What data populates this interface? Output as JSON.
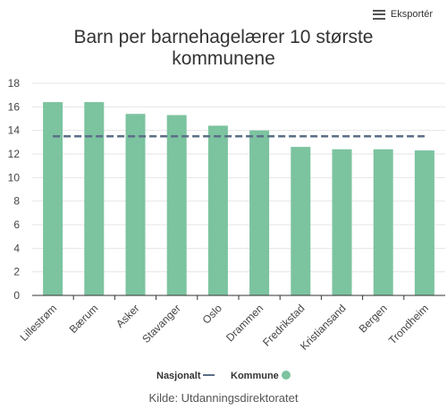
{
  "export_button": {
    "label": "Eksportér",
    "icon": "menu-icon"
  },
  "colors": {
    "bar": "#7cc3a0",
    "national_line": "#5b6f86",
    "grid": "#e6e6e6",
    "axis": "#333333"
  },
  "source": "Kilde: Utdanningsdirektoratet",
  "chart_data": {
    "type": "bar",
    "title_lines": [
      "Barn per barnehagelærer 10 største",
      "kommunene"
    ],
    "categories": [
      "Lillestrøm",
      "Bærum",
      "Asker",
      "Stavanger",
      "Oslo",
      "Drammen",
      "Fredrikstad",
      "Kristiansand",
      "Bergen",
      "Trondheim"
    ],
    "series": [
      {
        "name": "Kommune",
        "type": "bar",
        "values": [
          16.4,
          16.4,
          15.4,
          15.3,
          14.4,
          14.0,
          12.6,
          12.4,
          12.4,
          12.3
        ]
      },
      {
        "name": "Nasjonalt",
        "type": "line",
        "style": "dashed",
        "value": 13.5
      }
    ],
    "y_ticks": [
      0,
      2,
      4,
      6,
      8,
      10,
      12,
      14,
      16,
      18
    ],
    "ylim": [
      0,
      18
    ],
    "grid": true,
    "legend_position": "bottom-center",
    "xlabel": "",
    "ylabel": ""
  }
}
